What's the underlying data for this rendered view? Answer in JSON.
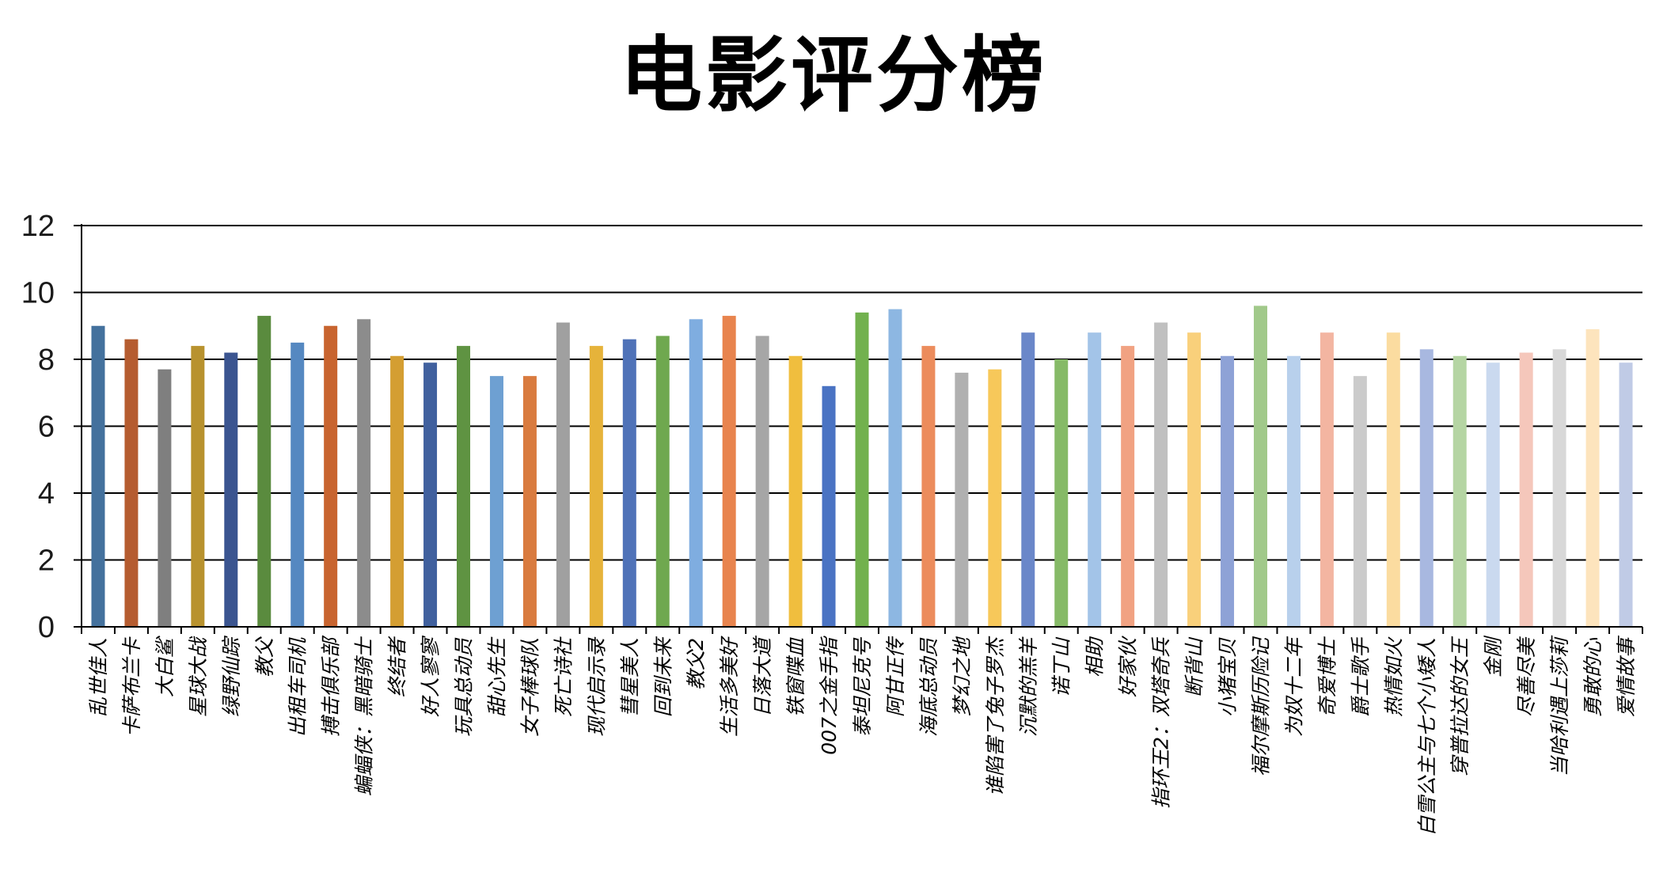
{
  "chart_data": {
    "type": "bar",
    "title": "电影评分榜",
    "xlabel": "",
    "ylabel": "",
    "ylim": [
      0,
      12
    ],
    "yticks": [
      0,
      2,
      4,
      6,
      8,
      10,
      12
    ],
    "grid": true,
    "legend": "none",
    "categories": [
      "乱世佳人",
      "卡萨布兰卡",
      "大白鲨",
      "星球大战",
      "绿野仙踪",
      "教父",
      "出租车司机",
      "搏击俱乐部",
      "蝙蝠侠：黑暗骑士",
      "终结者",
      "好人寥寥",
      "玩具总动员",
      "甜心先生",
      "女子棒球队",
      "死亡诗社",
      "现代启示录",
      "彗星美人",
      "回到未来",
      "教父2",
      "生活多美好",
      "日落大道",
      "铁窗喋血",
      "007之金手指",
      "泰坦尼克号",
      "阿甘正传",
      "海底总动员",
      "梦幻之地",
      "谁陷害了兔子罗杰",
      "沉默的羔羊",
      "诺丁山",
      "相助",
      "好家伙",
      "指环王2：双塔奇兵",
      "断背山",
      "小猪宝贝",
      "福尔摩斯历险记",
      "为奴十二年",
      "奇爱博士",
      "爵士歌手",
      "热情如火",
      "白雪公主与七个小矮人",
      "穿普拉达的女王",
      "金刚",
      "尽善尽美",
      "当哈利遇上莎莉",
      "勇敢的心",
      "爱情故事"
    ],
    "values": [
      9.0,
      8.6,
      7.7,
      8.4,
      8.2,
      9.3,
      8.5,
      9.0,
      9.2,
      8.1,
      7.9,
      8.4,
      7.5,
      7.5,
      9.1,
      8.4,
      8.6,
      8.7,
      9.2,
      9.3,
      8.7,
      8.1,
      7.2,
      9.4,
      9.5,
      8.4,
      7.6,
      7.7,
      8.8,
      8.0,
      8.8,
      8.4,
      9.1,
      8.8,
      8.1,
      9.6,
      8.1,
      8.8,
      7.5,
      8.8,
      8.3,
      8.1,
      7.9,
      8.2,
      8.3,
      8.9,
      7.9
    ],
    "colors": [
      "#44719d",
      "#b55c30",
      "#7f7f7f",
      "#b8922e",
      "#3b5590",
      "#5a8b3e",
      "#5588c1",
      "#c8642f",
      "#8c8c8c",
      "#d49e32",
      "#40609e",
      "#5f9342",
      "#6ea0d2",
      "#d97b3f",
      "#a0a0a0",
      "#e6b33a",
      "#4f72b8",
      "#6fa84f",
      "#7fade0",
      "#e8844e",
      "#a6a6a6",
      "#f0be3e",
      "#4a73c3",
      "#72b14e",
      "#8db7e2",
      "#ec8c5c",
      "#b0b0b0",
      "#f7c85a",
      "#6a87c9",
      "#86ba67",
      "#a3c4e8",
      "#f1a282",
      "#c0c0c0",
      "#f9d07b",
      "#8ea2d6",
      "#a1c98a",
      "#b8d0ec",
      "#f3b5a1",
      "#cbcbcb",
      "#fbdca0",
      "#a8b8e0",
      "#b5d5a3",
      "#cad9ef",
      "#f5c7bb",
      "#d8d8d8",
      "#fde4bd",
      "#c0cbe6"
    ]
  }
}
